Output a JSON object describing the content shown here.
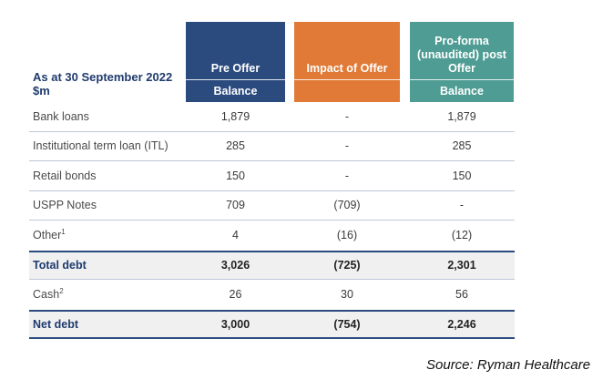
{
  "header": {
    "label_line1": "As at 30 September 2022",
    "label_line2": "$m",
    "columns": [
      {
        "title": "Pre Offer",
        "sub": "Balance",
        "color": "#2b4a7e"
      },
      {
        "title": "Impact of Offer",
        "sub": "",
        "color": "#e07a36"
      },
      {
        "title": "Pro-forma (unaudited) post Offer",
        "sub": "Balance",
        "color": "#4e9c93"
      }
    ]
  },
  "rows": [
    {
      "label": "Bank loans",
      "sup": "",
      "pre": "1,879",
      "impact": "-",
      "post": "1,879"
    },
    {
      "label": "Institutional term loan (ITL)",
      "sup": "",
      "pre": "285",
      "impact": "-",
      "post": "285"
    },
    {
      "label": "Retail bonds",
      "sup": "",
      "pre": "150",
      "impact": "-",
      "post": "150"
    },
    {
      "label": "USPP Notes",
      "sup": "",
      "pre": "709",
      "impact": "(709)",
      "post": "-"
    },
    {
      "label": "Other",
      "sup": "1",
      "pre": "4",
      "impact": "(16)",
      "post": "(12)"
    }
  ],
  "total": {
    "label": "Total debt",
    "pre": "3,026",
    "impact": "(725)",
    "post": "2,301"
  },
  "cash": {
    "label": "Cash",
    "sup": "2",
    "pre": "26",
    "impact": "30",
    "post": "56"
  },
  "net": {
    "label": "Net debt",
    "pre": "3,000",
    "impact": "(754)",
    "post": "2,246"
  },
  "source": "Source: Ryman Healthcare"
}
